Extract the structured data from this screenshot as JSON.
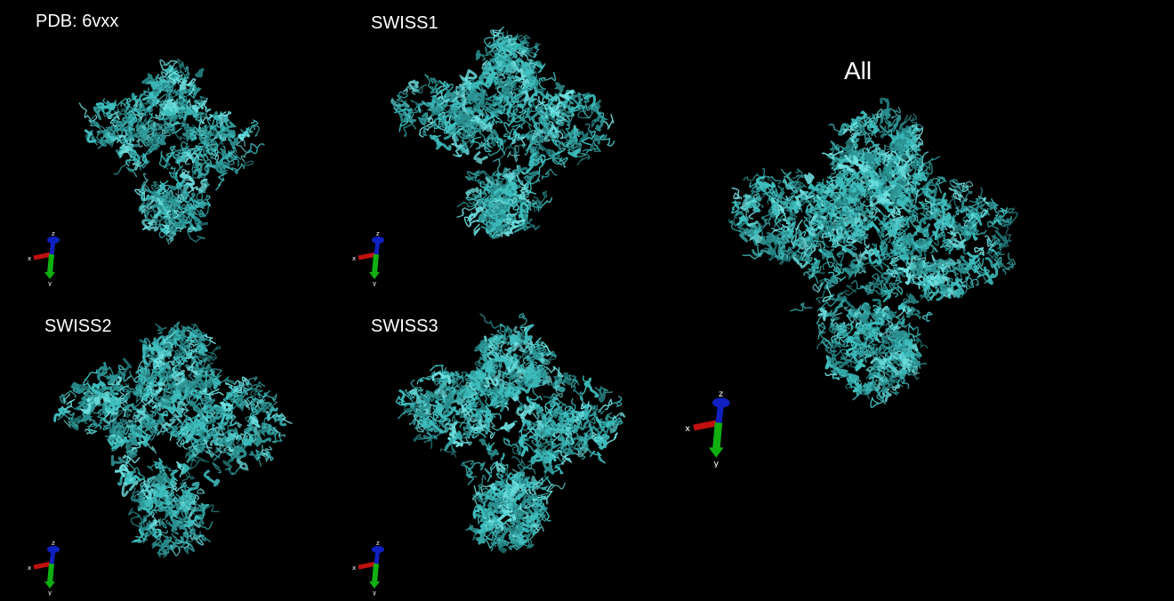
{
  "panels": [
    {
      "key": "pdb",
      "label": "PDB: 6vxx"
    },
    {
      "key": "swiss1",
      "label": "SWISS1"
    },
    {
      "key": "swiss2",
      "label": "SWISS2"
    },
    {
      "key": "swiss3",
      "label": "SWISS3"
    },
    {
      "key": "all",
      "label": "All"
    }
  ],
  "axes": {
    "x": "x",
    "y": "y",
    "z": "z"
  },
  "colors": {
    "background": "#000000",
    "protein": "#3fbfbf",
    "axis_x": "#c01010",
    "axis_y": "#10b010",
    "axis_z": "#1020c0"
  },
  "icons": {
    "protein": "ribbon-structure-icon",
    "axes": "xyz-axes-icon"
  }
}
